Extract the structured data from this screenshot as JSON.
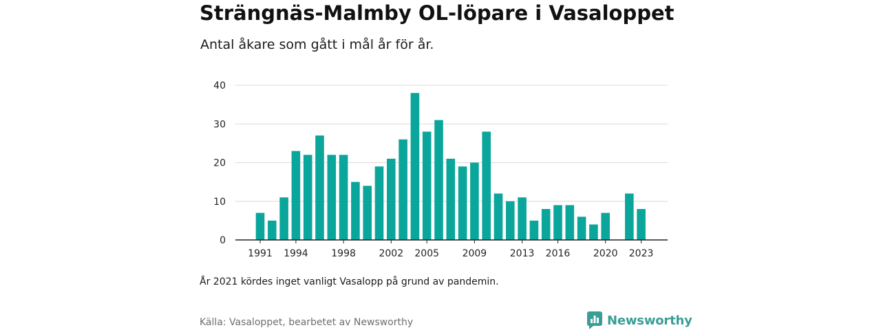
{
  "colors": {
    "bar": "#0aa69b",
    "grid": "#d9d9d9",
    "axis": "#222222",
    "brand": "#3a9d96"
  },
  "header": {
    "title": "Strängnäs-Malmby OL-löpare i Vasaloppet",
    "subtitle": "Antal åkare som gått i mål år för år."
  },
  "footer": {
    "note": "År 2021 kördes inget vanligt Vasalopp på grund av pandemin.",
    "source": "Källa: Vasaloppet, bearbetet av Newsworthy",
    "brand": "Newsworthy",
    "brand_icon": "newsworthy-logo-icon"
  },
  "chart_data": {
    "type": "bar",
    "title": "Strängnäs-Malmby OL-löpare i Vasaloppet",
    "subtitle": "Antal åkare som gått i mål år för år.",
    "categories": [
      1991,
      1992,
      1993,
      1994,
      1995,
      1996,
      1997,
      1998,
      1999,
      2000,
      2001,
      2002,
      2003,
      2004,
      2005,
      2006,
      2007,
      2008,
      2009,
      2010,
      2011,
      2012,
      2013,
      2014,
      2015,
      2016,
      2017,
      2018,
      2019,
      2020,
      2021,
      2022,
      2023
    ],
    "values": [
      7,
      5,
      11,
      23,
      22,
      27,
      22,
      22,
      15,
      14,
      19,
      21,
      26,
      38,
      28,
      31,
      21,
      19,
      20,
      28,
      12,
      10,
      11,
      5,
      8,
      9,
      9,
      6,
      4,
      7,
      null,
      12,
      8
    ],
    "x_tick_labels": [
      "1991",
      "1994",
      "1998",
      "2002",
      "2005",
      "2009",
      "2013",
      "2016",
      "2020",
      "2023"
    ],
    "y_ticks": [
      0,
      10,
      20,
      30,
      40
    ],
    "ylim": [
      0,
      40
    ],
    "xlabel": "",
    "ylabel": "",
    "grid": true,
    "legend": "none"
  }
}
